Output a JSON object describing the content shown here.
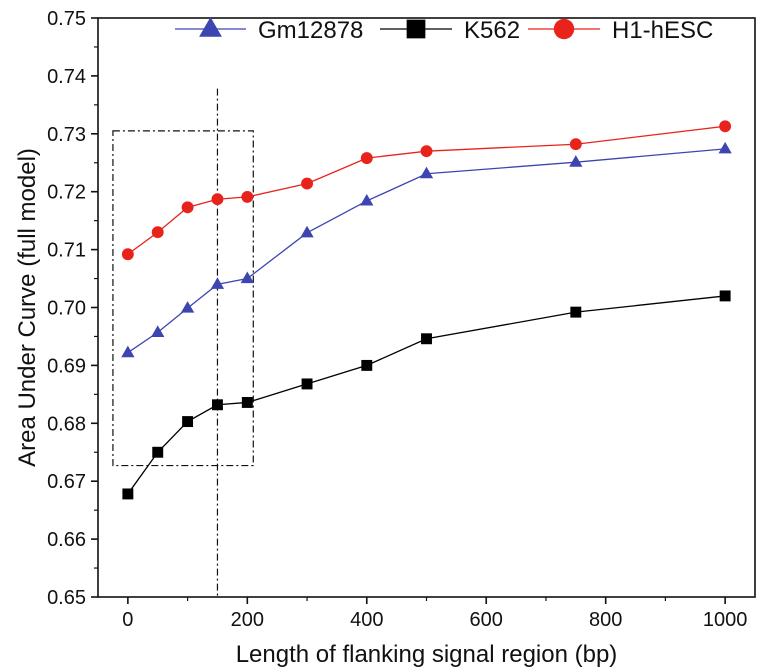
{
  "chart_data": {
    "type": "line",
    "xlabel": "Length of flanking signal region (bp)",
    "ylabel": "Area Under Curve (full model)",
    "xlim": [
      -50,
      1050
    ],
    "ylim": [
      0.65,
      0.75
    ],
    "x_ticks": [
      "0",
      "200",
      "400",
      "600",
      "800",
      "1000"
    ],
    "y_ticks": [
      "0.65",
      "0.66",
      "0.67",
      "0.68",
      "0.69",
      "0.70",
      "0.71",
      "0.72",
      "0.73",
      "0.74",
      "0.75"
    ],
    "grid": false,
    "legend_position": "top",
    "x": [
      0,
      50,
      100,
      150,
      200,
      300,
      400,
      500,
      750,
      1000
    ],
    "series": [
      {
        "name": "Gm12878",
        "color": "#3d45b0",
        "marker": "triangle",
        "values": [
          0.6922,
          0.6957,
          0.6999,
          0.704,
          0.705,
          0.7129,
          0.7184,
          0.7231,
          0.7251,
          0.7274
        ]
      },
      {
        "name": "K562",
        "color": "#000000",
        "marker": "square",
        "values": [
          0.6678,
          0.675,
          0.6803,
          0.6832,
          0.6836,
          0.6868,
          0.69,
          0.6946,
          0.6992,
          0.702
        ]
      },
      {
        "name": "H1-hESC",
        "color": "#e8231c",
        "marker": "circle",
        "values": [
          0.7092,
          0.713,
          0.7173,
          0.7187,
          0.7191,
          0.7214,
          0.7258,
          0.727,
          0.7282,
          0.7313
        ]
      }
    ],
    "annotations": {
      "dashed_box": {
        "x0": -25,
        "x1": 210,
        "y0": 0.6727,
        "y1": 0.7305
      },
      "vertical_line": {
        "x": 150,
        "y0": 0.65,
        "y1": 0.7378
      }
    }
  }
}
